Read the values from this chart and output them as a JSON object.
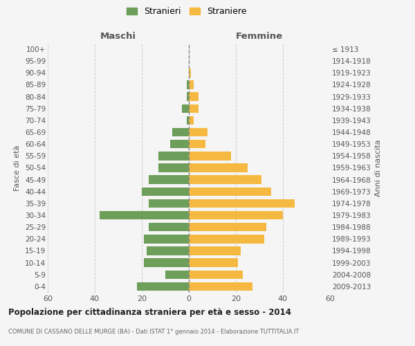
{
  "age_groups": [
    "100+",
    "95-99",
    "90-94",
    "85-89",
    "80-84",
    "75-79",
    "70-74",
    "65-69",
    "60-64",
    "55-59",
    "50-54",
    "45-49",
    "40-44",
    "35-39",
    "30-34",
    "25-29",
    "20-24",
    "15-19",
    "10-14",
    "5-9",
    "0-4"
  ],
  "birth_years": [
    "≤ 1913",
    "1914-1918",
    "1919-1923",
    "1924-1928",
    "1929-1933",
    "1934-1938",
    "1939-1943",
    "1944-1948",
    "1949-1953",
    "1954-1958",
    "1959-1963",
    "1964-1968",
    "1969-1973",
    "1974-1978",
    "1979-1983",
    "1984-1988",
    "1989-1993",
    "1994-1998",
    "1999-2003",
    "2004-2008",
    "2009-2013"
  ],
  "males": [
    0,
    0,
    0,
    1,
    1,
    3,
    1,
    7,
    8,
    13,
    13,
    17,
    20,
    17,
    38,
    17,
    19,
    18,
    19,
    10,
    22
  ],
  "females": [
    0,
    0,
    1,
    2,
    4,
    4,
    2,
    8,
    7,
    18,
    25,
    31,
    35,
    45,
    40,
    33,
    32,
    22,
    21,
    23,
    27
  ],
  "male_color": "#6d9e5a",
  "female_color": "#f5b942",
  "background_color": "#f5f5f5",
  "grid_color": "#cccccc",
  "title": "Popolazione per cittadinanza straniera per età e sesso - 2014",
  "subtitle": "COMUNE DI CASSANO DELLE MURGE (BA) - Dati ISTAT 1° gennaio 2014 - Elaborazione TUTTITALIA.IT",
  "ylabel_left": "Fasce di età",
  "ylabel_right": "Anni di nascita",
  "xlabel_left": "Maschi",
  "xlabel_right": "Femmine",
  "legend_male": "Stranieri",
  "legend_female": "Straniere",
  "xlim": 60
}
